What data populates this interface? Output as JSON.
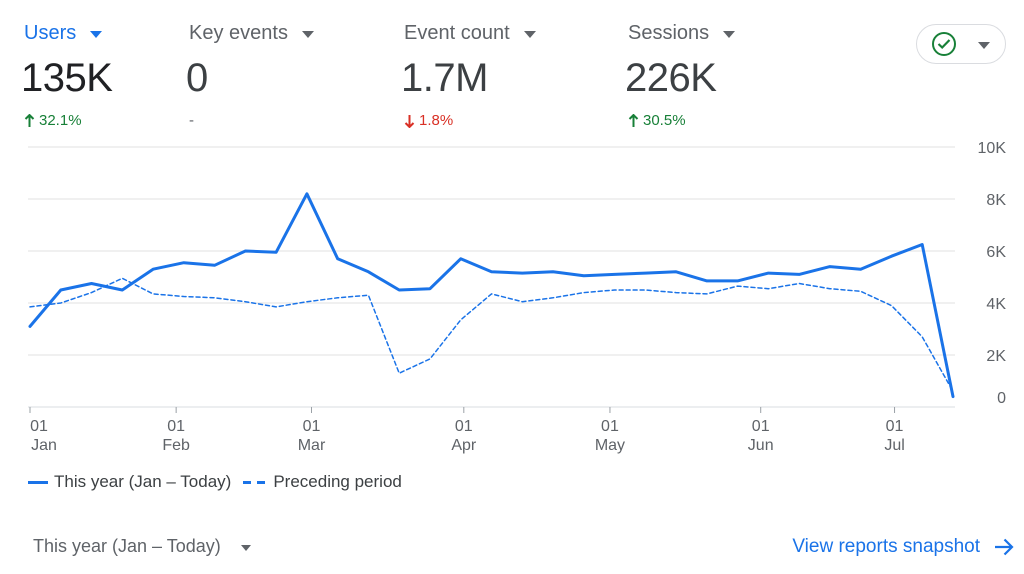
{
  "metrics": [
    {
      "label": "Users",
      "value": "135K",
      "change": "32.1%",
      "direction": "up",
      "active": true
    },
    {
      "label": "Key events",
      "value": "0",
      "change": "-",
      "direction": "none",
      "active": false
    },
    {
      "label": "Event count",
      "value": "1.7M",
      "change": "1.8%",
      "direction": "down",
      "active": false
    },
    {
      "label": "Sessions",
      "value": "226K",
      "change": "30.5%",
      "direction": "up",
      "active": false
    }
  ],
  "icons": {
    "status": "check-circle-icon",
    "dropdown": "chevron-down-icon",
    "arrow_up": "arrow-up-icon",
    "arrow_down": "arrow-down-icon",
    "arrow_right": "arrow-right-icon"
  },
  "colors": {
    "accent": "#1a73e8",
    "positive": "#188038",
    "negative": "#d93025",
    "grid": "#e0e0e0"
  },
  "chart_data": {
    "type": "line",
    "title": "",
    "xlabel": "",
    "ylabel": "",
    "ylim": [
      0,
      10000
    ],
    "y_ticks": [
      {
        "value": 10000,
        "label": "10K"
      },
      {
        "value": 8000,
        "label": "8K"
      },
      {
        "value": 6000,
        "label": "6K"
      },
      {
        "value": 4000,
        "label": "4K"
      },
      {
        "value": 2000,
        "label": "2K"
      },
      {
        "value": 0,
        "label": "0"
      }
    ],
    "x_ticks": [
      {
        "index": 0,
        "day": "01",
        "month": "Jan"
      },
      {
        "index": 4.75,
        "day": "01",
        "month": "Feb"
      },
      {
        "index": 9.15,
        "day": "01",
        "month": "Mar"
      },
      {
        "index": 14.1,
        "day": "01",
        "month": "Apr"
      },
      {
        "index": 18.85,
        "day": "01",
        "month": "May"
      },
      {
        "index": 23.75,
        "day": "01",
        "month": "Jun"
      },
      {
        "index": 28.1,
        "day": "01",
        "month": "Jul"
      }
    ],
    "series": [
      {
        "name": "This year (Jan – Today)",
        "style": "solid",
        "values": [
          3100,
          4500,
          4750,
          4500,
          5300,
          5550,
          5450,
          6000,
          5950,
          8200,
          5700,
          5200,
          4500,
          4550,
          5700,
          5200,
          5150,
          5200,
          5050,
          5100,
          5150,
          5200,
          4850,
          4850,
          5150,
          5100,
          5400,
          5300,
          5800,
          6250,
          400
        ]
      },
      {
        "name": "Preceding period",
        "style": "dashed",
        "values": [
          3850,
          4000,
          4400,
          4950,
          4350,
          4250,
          4200,
          4050,
          3850,
          4050,
          4200,
          4300,
          1300,
          1850,
          3350,
          4350,
          4050,
          4200,
          4400,
          4500,
          4500,
          4400,
          4350,
          4650,
          4550,
          4750,
          4550,
          4450,
          3900,
          2700,
          600
        ]
      }
    ],
    "legend": [
      "This year (Jan – Today)",
      "Preceding period"
    ]
  },
  "footer": {
    "period_label": "This year (Jan – Today)",
    "snapshot_label": "View reports snapshot"
  }
}
